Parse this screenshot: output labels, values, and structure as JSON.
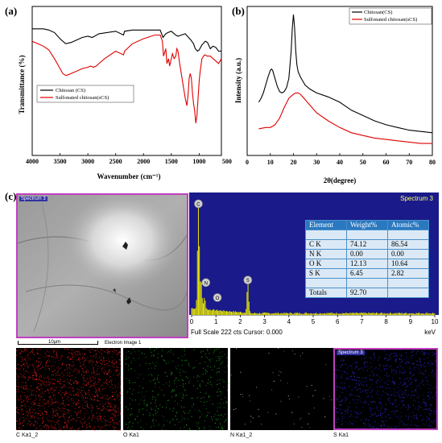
{
  "panels": {
    "a": "(a)",
    "b": "(b)",
    "c": "(c)"
  },
  "chart_data": [
    {
      "type": "line",
      "panel": "(a)",
      "xlabel": "Wavenumber (cm⁻¹)",
      "ylabel": "Transmittance (%)",
      "xlim": [
        4000,
        600
      ],
      "x_reversed": true,
      "x_ticks": [
        "4000",
        "3500",
        "3000",
        "2500",
        "2000",
        "1500",
        "1000",
        "500"
      ],
      "legend_position": "center-left",
      "series": [
        {
          "name": "Chitosan (CS)",
          "color": "#000000",
          "x": [
            4000,
            3800,
            3700,
            3600,
            3500,
            3400,
            3300,
            3200,
            3100,
            3000,
            2920,
            2880,
            2800,
            2500,
            2360,
            2340,
            2200,
            2000,
            1800,
            1700,
            1650,
            1600,
            1560,
            1500,
            1420,
            1380,
            1320,
            1250,
            1150,
            1100,
            1070,
            1030,
            1000,
            950,
            890,
            850,
            800,
            750,
            700,
            650,
            600
          ],
          "y": [
            91,
            91,
            90.5,
            89.5,
            87,
            85,
            85.5,
            86.5,
            87.5,
            88,
            87.5,
            88,
            89,
            90,
            88.5,
            90,
            90.5,
            90.5,
            90.5,
            90.5,
            87.5,
            89,
            89.5,
            90,
            88.5,
            88,
            88.5,
            89,
            86.5,
            85,
            83,
            82,
            82.5,
            84.5,
            86,
            85.5,
            83,
            84,
            83.5,
            82,
            82
          ]
        },
        {
          "name": "Sulfonated chitosan(sCS)",
          "color": "#e00000",
          "x": [
            4000,
            3900,
            3800,
            3700,
            3600,
            3500,
            3450,
            3400,
            3350,
            3300,
            3200,
            3100,
            3000,
            2950,
            2900,
            2850,
            2800,
            2700,
            2500,
            2360,
            2340,
            2200,
            2000,
            1800,
            1700,
            1660,
            1640,
            1600,
            1580,
            1550,
            1530,
            1500,
            1480,
            1450,
            1420,
            1400,
            1380,
            1350,
            1300,
            1250,
            1220,
            1200,
            1180,
            1160,
            1140,
            1120,
            1100,
            1080,
            1060,
            1040,
            1020,
            1000,
            980,
            950,
            920,
            900,
            850,
            800,
            750,
            700,
            650,
            600
          ],
          "y": [
            86,
            85,
            84,
            82.5,
            79,
            75,
            73,
            72.2,
            72.5,
            73,
            74,
            75,
            75.5,
            76,
            75.5,
            76,
            77,
            79,
            82,
            80.5,
            82,
            85,
            87,
            88.5,
            88.5,
            86,
            80,
            83,
            77,
            79,
            76,
            79,
            81,
            79,
            80,
            83,
            82,
            77,
            70,
            63,
            60,
            64,
            71,
            73,
            71,
            65,
            61,
            58,
            53,
            56,
            63,
            70,
            74,
            79,
            80,
            80.5,
            80,
            80,
            79,
            78,
            77,
            79
          ]
        }
      ]
    },
    {
      "type": "line",
      "panel": "(b)",
      "xlabel": "2θ(degree)",
      "ylabel": "Intensity (a.u.)",
      "xlim": [
        0,
        80
      ],
      "x_ticks": [
        "0",
        "10",
        "20",
        "30",
        "40",
        "50",
        "60",
        "70",
        "80"
      ],
      "legend_position": "top-right",
      "series": [
        {
          "name": "Chitosan(CS)",
          "color": "#000000",
          "x": [
            5,
            6,
            7,
            8,
            9,
            10,
            10.5,
            11,
            12,
            13,
            14,
            15,
            16,
            17,
            18,
            19,
            19.5,
            20,
            20.5,
            21,
            21.5,
            22,
            23,
            24,
            25,
            27,
            30,
            35,
            40,
            45,
            50,
            55,
            60,
            65,
            70,
            75,
            80
          ],
          "y": [
            0.34,
            0.37,
            0.41,
            0.47,
            0.53,
            0.58,
            0.59,
            0.58,
            0.52,
            0.46,
            0.42,
            0.41,
            0.42,
            0.45,
            0.52,
            0.72,
            0.9,
            1.0,
            0.9,
            0.72,
            0.62,
            0.57,
            0.53,
            0.5,
            0.47,
            0.44,
            0.41,
            0.38,
            0.34,
            0.28,
            0.24,
            0.2,
            0.17,
            0.15,
            0.13,
            0.12,
            0.11
          ]
        },
        {
          "name": "Sulfonated chitosan(sCS)",
          "color": "#e00000",
          "x": [
            5,
            8,
            10,
            12,
            14,
            16,
            18,
            20,
            21,
            22,
            23,
            24,
            26,
            28,
            30,
            35,
            40,
            45,
            50,
            55,
            60,
            65,
            70,
            75,
            80
          ],
          "y": [
            0.14,
            0.15,
            0.15,
            0.17,
            0.22,
            0.3,
            0.37,
            0.4,
            0.41,
            0.41,
            0.4,
            0.38,
            0.34,
            0.3,
            0.26,
            0.2,
            0.15,
            0.11,
            0.09,
            0.07,
            0.06,
            0.05,
            0.04,
            0.03,
            0.03
          ]
        }
      ]
    },
    {
      "type": "bar",
      "panel": "(c)",
      "title": "Spectrum 3",
      "xlabel": "keV",
      "xlim": [
        0,
        10
      ],
      "x_ticks": [
        "0",
        "1",
        "2",
        "3",
        "4",
        "5",
        "6",
        "7",
        "8",
        "9",
        "10"
      ],
      "footer": "Full Scale 222 cts Cursor: 0.000",
      "peak_labels": [
        "C",
        "N",
        "O",
        "S"
      ],
      "peaks_keV": [
        0.28,
        0.39,
        0.53,
        2.31
      ],
      "peaks_counts": [
        222,
        55,
        25,
        60
      ],
      "color": "#e8e800",
      "table": {
        "headers": [
          "Element",
          "Weight%",
          "Atomic%"
        ],
        "rows": [
          [
            "",
            "",
            ""
          ],
          [
            "C K",
            "74.12",
            "86.54"
          ],
          [
            "N K",
            "0.00",
            "0.00"
          ],
          [
            "O K",
            "12.13",
            "10.64"
          ],
          [
            "S K",
            "6.45",
            "2.82"
          ],
          [
            "",
            "",
            ""
          ],
          [
            "Totals",
            "92.70",
            ""
          ]
        ]
      }
    }
  ],
  "sem": {
    "badge": "Spectrum 3",
    "scale_bar": "10μm",
    "caption": "Electron Image 1"
  },
  "maps": [
    {
      "label": "C Ka1_2",
      "color": "#ff2020"
    },
    {
      "label": "O Ka1",
      "color": "#20c020"
    },
    {
      "label": "N Ka1_2",
      "color": "#d0d0d0"
    },
    {
      "label": "S Ka1",
      "color": "#3030ff",
      "badge": "Spectrum 3"
    }
  ]
}
